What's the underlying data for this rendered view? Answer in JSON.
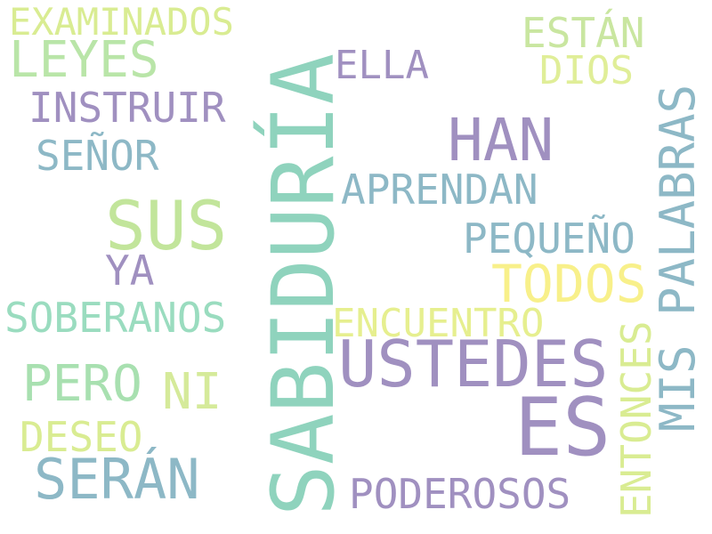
{
  "words": [
    {
      "text": "SABIDURÍA",
      "color": "#8fd3bd"
    },
    {
      "text": "ES",
      "color": "#a090c0"
    },
    {
      "text": "USTEDES",
      "color": "#a090c0"
    },
    {
      "text": "SUS",
      "color": "#c2e59b"
    },
    {
      "text": "HAN",
      "color": "#a090c0"
    },
    {
      "text": "SERÁN",
      "color": "#8db8c6"
    },
    {
      "text": "MIS PALABRAS",
      "color": "#8db8c6"
    },
    {
      "text": "LEYES",
      "color": "#b9e5a8"
    },
    {
      "text": "EXAMINADOS",
      "color": "#d9ec92"
    },
    {
      "text": "INSTRUIR",
      "color": "#a090c0"
    },
    {
      "text": "SEÑOR",
      "color": "#8db8c6"
    },
    {
      "text": "ELLA",
      "color": "#a090c0"
    },
    {
      "text": "ESTÁN",
      "color": "#c9e6a0"
    },
    {
      "text": "DIOS",
      "color": "#e0ee98"
    },
    {
      "text": "APRENDAN",
      "color": "#8db8c6"
    },
    {
      "text": "PEQUEÑO",
      "color": "#8db8c6"
    },
    {
      "text": "TODOS",
      "color": "#f8f08a"
    },
    {
      "text": "ENCUENTRO",
      "color": "#e6ef8f"
    },
    {
      "text": "YA",
      "color": "#a090c0"
    },
    {
      "text": "SOBERANOS",
      "color": "#9adcbf"
    },
    {
      "text": "PERO",
      "color": "#a8e0b0"
    },
    {
      "text": "NI",
      "color": "#d5ea9a"
    },
    {
      "text": "DESEO",
      "color": "#d9ec92"
    },
    {
      "text": "PODEROSOS",
      "color": "#a090c0"
    },
    {
      "text": "ENTONCES",
      "color": "#d9ec92"
    }
  ]
}
